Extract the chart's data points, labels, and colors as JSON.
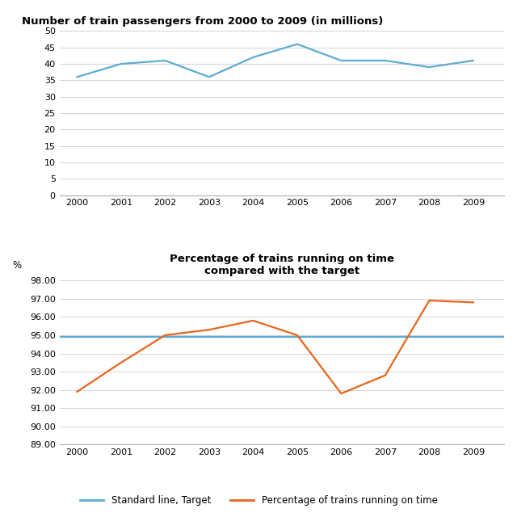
{
  "chart1": {
    "title": "Number of train passengers from 2000 to 2009 (in millions)",
    "years": [
      2000,
      2001,
      2002,
      2003,
      2004,
      2005,
      2006,
      2007,
      2008,
      2009
    ],
    "passengers": [
      36,
      40,
      41,
      36,
      42,
      46,
      41,
      41,
      39,
      41
    ],
    "ylim": [
      0,
      50
    ],
    "yticks": [
      0,
      5,
      10,
      15,
      20,
      25,
      30,
      35,
      40,
      45,
      50
    ],
    "line_color": "#5bacd4"
  },
  "chart2": {
    "title": "Percentage of trains running on time\ncompared with the target",
    "years": [
      2000,
      2001,
      2002,
      2003,
      2004,
      2005,
      2006,
      2007,
      2008,
      2009
    ],
    "on_time": [
      91.9,
      93.5,
      95.0,
      95.3,
      95.8,
      95.0,
      91.8,
      92.8,
      96.9,
      96.8
    ],
    "target": 94.9,
    "ylim": [
      89.0,
      98.0
    ],
    "yticks": [
      89.0,
      90.0,
      91.0,
      92.0,
      93.0,
      94.0,
      95.0,
      96.0,
      97.0,
      98.0
    ],
    "target_color": "#5bacd4",
    "on_time_color": "#e8651a",
    "ylabel": "%"
  },
  "legend": {
    "target_label": "Standard line, Target",
    "on_time_label": "Percentage of trains running on time"
  },
  "background_color": "#ffffff"
}
